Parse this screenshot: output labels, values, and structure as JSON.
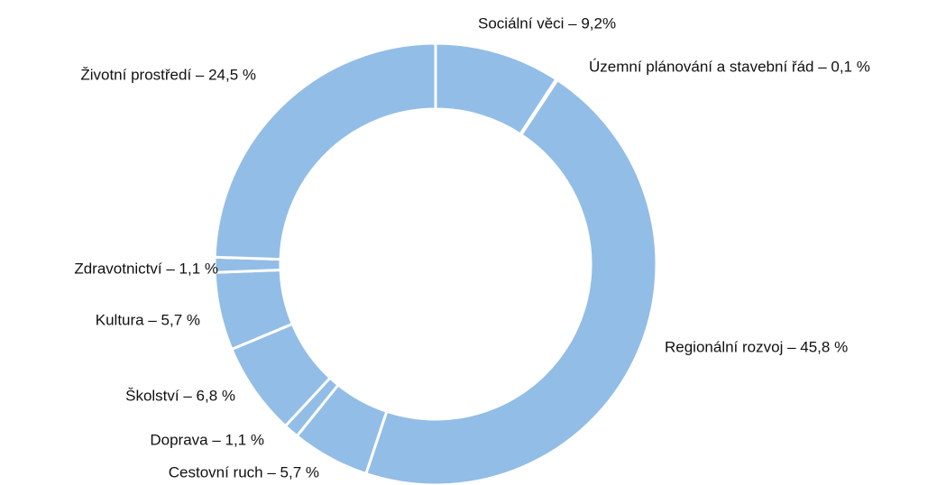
{
  "chart_data": {
    "type": "donut",
    "values": [
      9.2,
      0.1,
      45.8,
      5.7,
      1.1,
      6.8,
      5.7,
      1.1,
      24.5
    ],
    "value_labels": [
      "Sociální věci – 9,2%",
      "Územní plánování a stavební řád – 0,1 %",
      "Regionální rozvoj – 45,8 %",
      "Cestovní ruch – 5,7 %",
      "Doprava – 1,1 %",
      "Školství – 6,8 %",
      "Kultura – 5,7 %",
      "Zdravotnictví – 1,1 %",
      "Životní prostředí – 24,5 %"
    ],
    "color": "#92bde6"
  }
}
